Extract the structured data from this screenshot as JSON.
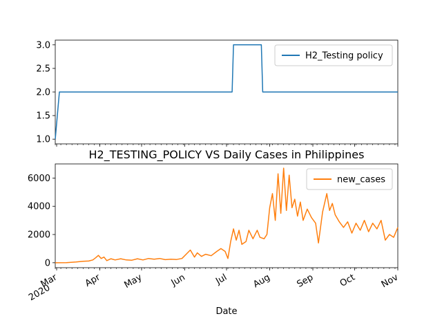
{
  "chart_data": [
    {
      "type": "line",
      "series": [
        {
          "name": "H2_Testing policy",
          "color": "#1f77b4",
          "points": [
            [
              "2020-02-29",
              1
            ],
            [
              "2020-03-03",
              2
            ],
            [
              "2020-07-05",
              2
            ],
            [
              "2020-07-06",
              3
            ],
            [
              "2020-07-26",
              3
            ],
            [
              "2020-07-27",
              2
            ],
            [
              "2020-11-01",
              2
            ]
          ]
        }
      ],
      "ylim": [
        0.9,
        3.1
      ],
      "yticks": [
        1.0,
        1.5,
        2.0,
        2.5,
        3.0
      ],
      "ytick_labels": [
        "1.0",
        "1.5",
        "2.0",
        "2.5",
        "3.0"
      ],
      "legend": "upper right"
    },
    {
      "type": "line",
      "title": "H2_TESTING_POLICY VS Daily Cases in Philippines",
      "xlabel": "Date",
      "series": [
        {
          "name": "new_cases",
          "color": "#ff7f0e",
          "points": [
            [
              "2020-02-29",
              0
            ],
            [
              "2020-03-08",
              5
            ],
            [
              "2020-03-15",
              50
            ],
            [
              "2020-03-20",
              100
            ],
            [
              "2020-03-24",
              120
            ],
            [
              "2020-03-27",
              200
            ],
            [
              "2020-03-29",
              350
            ],
            [
              "2020-03-31",
              520
            ],
            [
              "2020-04-02",
              300
            ],
            [
              "2020-04-04",
              400
            ],
            [
              "2020-04-06",
              150
            ],
            [
              "2020-04-09",
              280
            ],
            [
              "2020-04-12",
              200
            ],
            [
              "2020-04-16",
              280
            ],
            [
              "2020-04-20",
              200
            ],
            [
              "2020-04-24",
              180
            ],
            [
              "2020-04-28",
              280
            ],
            [
              "2020-05-02",
              200
            ],
            [
              "2020-05-06",
              300
            ],
            [
              "2020-05-10",
              250
            ],
            [
              "2020-05-14",
              300
            ],
            [
              "2020-05-18",
              220
            ],
            [
              "2020-05-22",
              250
            ],
            [
              "2020-05-26",
              230
            ],
            [
              "2020-05-30",
              300
            ],
            [
              "2020-06-03",
              700
            ],
            [
              "2020-06-05",
              900
            ],
            [
              "2020-06-08",
              400
            ],
            [
              "2020-06-10",
              700
            ],
            [
              "2020-06-13",
              450
            ],
            [
              "2020-06-16",
              600
            ],
            [
              "2020-06-20",
              500
            ],
            [
              "2020-06-24",
              800
            ],
            [
              "2020-06-27",
              1000
            ],
            [
              "2020-06-30",
              800
            ],
            [
              "2020-07-02",
              300
            ],
            [
              "2020-07-04",
              1500
            ],
            [
              "2020-07-06",
              2400
            ],
            [
              "2020-07-08",
              1600
            ],
            [
              "2020-07-10",
              2300
            ],
            [
              "2020-07-12",
              1300
            ],
            [
              "2020-07-15",
              1500
            ],
            [
              "2020-07-17",
              2300
            ],
            [
              "2020-07-20",
              1700
            ],
            [
              "2020-07-23",
              2300
            ],
            [
              "2020-07-25",
              1800
            ],
            [
              "2020-07-28",
              1700
            ],
            [
              "2020-07-30",
              2000
            ],
            [
              "2020-08-01",
              3900
            ],
            [
              "2020-08-03",
              4900
            ],
            [
              "2020-08-05",
              3000
            ],
            [
              "2020-08-07",
              6300
            ],
            [
              "2020-08-09",
              3500
            ],
            [
              "2020-08-11",
              6700
            ],
            [
              "2020-08-13",
              3700
            ],
            [
              "2020-08-15",
              6200
            ],
            [
              "2020-08-17",
              3900
            ],
            [
              "2020-08-19",
              4500
            ],
            [
              "2020-08-21",
              3300
            ],
            [
              "2020-08-23",
              4300
            ],
            [
              "2020-08-25",
              3000
            ],
            [
              "2020-08-28",
              3800
            ],
            [
              "2020-08-31",
              3200
            ],
            [
              "2020-09-03",
              2800
            ],
            [
              "2020-09-05",
              1400
            ],
            [
              "2020-09-08",
              3600
            ],
            [
              "2020-09-11",
              4900
            ],
            [
              "2020-09-13",
              3700
            ],
            [
              "2020-09-15",
              4200
            ],
            [
              "2020-09-17",
              3400
            ],
            [
              "2020-09-20",
              2900
            ],
            [
              "2020-09-23",
              2500
            ],
            [
              "2020-09-26",
              2900
            ],
            [
              "2020-09-29",
              2100
            ],
            [
              "2020-10-02",
              2800
            ],
            [
              "2020-10-05",
              2300
            ],
            [
              "2020-10-08",
              3000
            ],
            [
              "2020-10-11",
              2200
            ],
            [
              "2020-10-14",
              2800
            ],
            [
              "2020-10-17",
              2400
            ],
            [
              "2020-10-20",
              3000
            ],
            [
              "2020-10-23",
              1600
            ],
            [
              "2020-10-26",
              2000
            ],
            [
              "2020-10-29",
              1800
            ],
            [
              "2020-11-01",
              2500
            ]
          ]
        }
      ],
      "ylim": [
        -350,
        7000
      ],
      "yticks": [
        0,
        2000,
        4000,
        6000
      ],
      "ytick_labels": [
        "0",
        "2000",
        "4000",
        "6000"
      ],
      "xlim": [
        "2020-02-29",
        "2020-11-01"
      ],
      "xticks": [
        "2020-03-01",
        "2020-04-01",
        "2020-05-01",
        "2020-06-01",
        "2020-07-01",
        "2020-08-01",
        "2020-09-01",
        "2020-10-01",
        "2020-11-01"
      ],
      "xtick_labels": [
        "Mar\n2020",
        "Apr",
        "May",
        "Jun",
        "Jul",
        "Aug",
        "Sep",
        "Oct",
        "Nov"
      ],
      "legend": "upper right"
    }
  ]
}
